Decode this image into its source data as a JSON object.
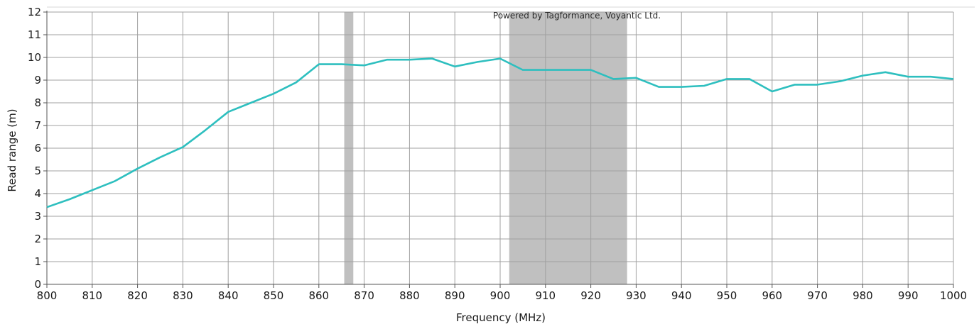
{
  "chart_data": {
    "type": "line",
    "title": "",
    "watermark": "Powered by Tagformance, Voyantic Ltd.",
    "xlabel": "Frequency (MHz)",
    "ylabel": "Read range (m)",
    "xlim": [
      800,
      1000
    ],
    "ylim": [
      0,
      12
    ],
    "x_ticks": [
      800,
      810,
      820,
      830,
      840,
      850,
      860,
      870,
      880,
      890,
      900,
      910,
      920,
      930,
      940,
      950,
      960,
      970,
      980,
      990,
      1000
    ],
    "y_ticks": [
      0,
      1,
      2,
      3,
      4,
      5,
      6,
      7,
      8,
      9,
      10,
      11,
      12
    ],
    "grid": true,
    "line_color": "#2ebfbf",
    "band_color": "#c0c0c0",
    "shaded_bands": [
      {
        "x_start": 865.6,
        "x_end": 867.6
      },
      {
        "x_start": 902,
        "x_end": 928
      }
    ],
    "series": [
      {
        "x": [
          800,
          805,
          810,
          815,
          820,
          825,
          830,
          835,
          840,
          845,
          850,
          855,
          860,
          865,
          870,
          875,
          880,
          885,
          890,
          895,
          900,
          905,
          910,
          915,
          920,
          925,
          930,
          935,
          940,
          945,
          950,
          955,
          960,
          965,
          970,
          975,
          980,
          985,
          990,
          995,
          1000
        ],
        "values": [
          3.4,
          3.75,
          4.15,
          4.55,
          5.1,
          5.6,
          6.05,
          6.8,
          7.6,
          8.0,
          8.4,
          8.9,
          9.7,
          9.7,
          9.65,
          9.9,
          9.9,
          9.95,
          9.6,
          9.8,
          9.95,
          9.45,
          9.45,
          9.45,
          9.45,
          9.05,
          9.1,
          8.7,
          8.7,
          8.75,
          9.05,
          9.05,
          8.5,
          8.8,
          8.8,
          8.95,
          9.2,
          9.35,
          9.15,
          9.15,
          9.05
        ]
      }
    ]
  }
}
